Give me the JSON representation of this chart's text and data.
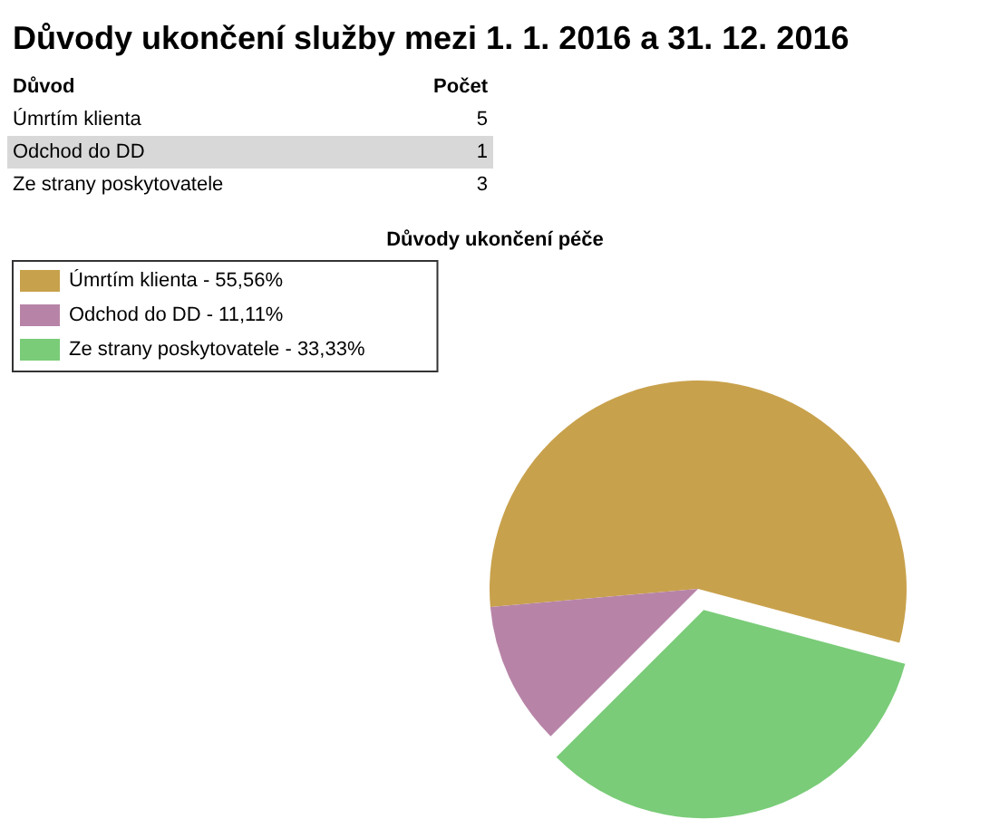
{
  "chart_data": [
    {
      "type": "other",
      "title": "Důvody ukončení služby mezi 1. 1. 2016 a 31. 12. 2016",
      "annotations": [
        "Důvod",
        "Počet"
      ],
      "categories": [
        "Úmrtím klienta",
        "Odchod do DD",
        "Ze strany poskytovatele"
      ],
      "values": [
        5,
        1,
        3
      ],
      "data_labels": true
    },
    {
      "type": "pie",
      "title": "Důvody ukončení péče",
      "categories": [
        "Úmrtím klienta - 55,56%",
        "Odchod do DD - 11,11%",
        "Ze strany poskytovatele - 33,33%"
      ],
      "values": [
        55.56,
        11.11,
        33.33
      ],
      "colors": [
        "#c8a14c",
        "#b784a7",
        "#7acc78"
      ],
      "legend": "top left"
    }
  ]
}
